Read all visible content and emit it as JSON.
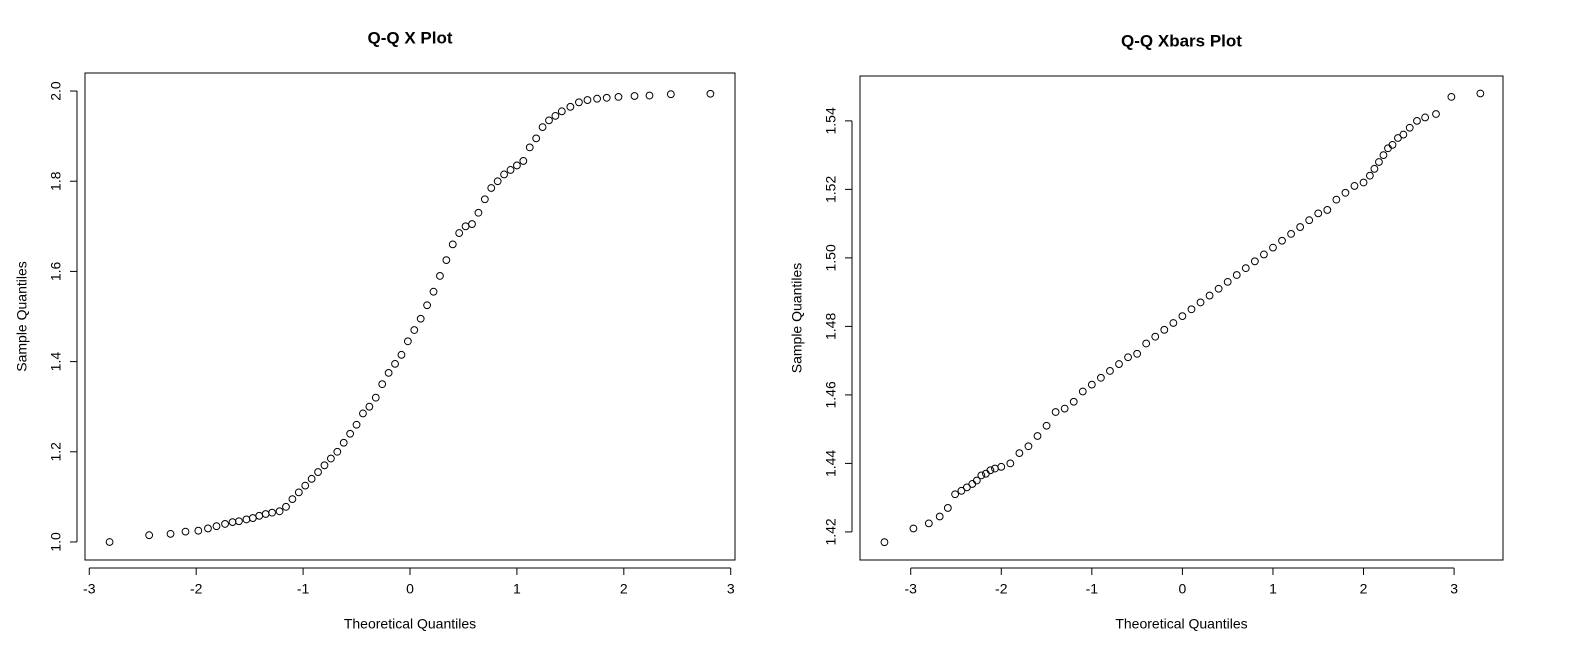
{
  "chart_data": [
    {
      "type": "scatter",
      "title": "Q-Q X Plot",
      "x_label": "Theoretical Quantiles",
      "y_label": "Sample Quantiles",
      "xlim": [
        -3.04,
        3.04
      ],
      "ylim": [
        0.96,
        2.04
      ],
      "xticks": [
        -3,
        -2,
        -1,
        0,
        1,
        2,
        3
      ],
      "yticks": [
        {
          "value": 1,
          "label": "1.0"
        },
        1.2,
        1.4,
        1.6,
        1.8,
        {
          "value": 2,
          "label": "2.0"
        }
      ],
      "color": "#000000",
      "x": [
        -2.81,
        -2.44,
        -2.24,
        -2.1,
        -1.98,
        -1.89,
        -1.81,
        -1.73,
        -1.66,
        -1.6,
        -1.53,
        -1.47,
        -1.41,
        -1.35,
        -1.29,
        -1.22,
        -1.16,
        -1.1,
        -1.04,
        -0.98,
        -0.92,
        -0.86,
        -0.8,
        -0.74,
        -0.68,
        -0.62,
        -0.56,
        -0.5,
        -0.44,
        -0.38,
        -0.32,
        -0.26,
        -0.2,
        -0.14,
        -0.08,
        -0.02,
        0.04,
        0.1,
        0.16,
        0.22,
        0.28,
        0.34,
        0.4,
        0.46,
        0.52,
        0.58,
        0.64,
        0.7,
        0.76,
        0.82,
        0.88,
        0.94,
        1.0,
        1.06,
        1.12,
        1.18,
        1.24,
        1.3,
        1.36,
        1.42,
        1.5,
        1.58,
        1.66,
        1.75,
        1.84,
        1.95,
        2.1,
        2.24,
        2.44,
        2.81
      ],
      "y": [
        1.0,
        1.015,
        1.018,
        1.023,
        1.025,
        1.03,
        1.035,
        1.04,
        1.044,
        1.046,
        1.05,
        1.053,
        1.058,
        1.062,
        1.065,
        1.068,
        1.078,
        1.095,
        1.11,
        1.125,
        1.14,
        1.155,
        1.17,
        1.185,
        1.2,
        1.22,
        1.24,
        1.26,
        1.285,
        1.3,
        1.32,
        1.35,
        1.375,
        1.395,
        1.415,
        1.445,
        1.47,
        1.495,
        1.525,
        1.555,
        1.59,
        1.625,
        1.66,
        1.685,
        1.7,
        1.705,
        1.73,
        1.76,
        1.785,
        1.8,
        1.815,
        1.825,
        1.835,
        1.845,
        1.875,
        1.895,
        1.92,
        1.935,
        1.945,
        1.955,
        1.965,
        1.975,
        1.98,
        1.983,
        1.985,
        1.987,
        1.989,
        1.99,
        1.993,
        1.994
      ]
    },
    {
      "type": "scatter",
      "title": "Q-Q Xbars Plot",
      "x_label": "Theoretical Quantiles",
      "y_label": "Sample Quantiles",
      "xlim": [
        -3.56,
        3.54
      ],
      "ylim": [
        1.4118,
        1.5531
      ],
      "xticks": [
        -3,
        -2,
        -1,
        0,
        1,
        2,
        3
      ],
      "yticks": [
        1.42,
        1.44,
        1.46,
        1.48,
        {
          "value": 1.5,
          "label": "1.50"
        },
        1.52,
        1.54
      ],
      "color": "#000000",
      "x": [
        -3.29,
        -2.97,
        -2.8,
        -2.68,
        -2.59,
        -2.51,
        -2.44,
        -2.38,
        -2.32,
        -2.27,
        -2.22,
        -2.17,
        -2.12,
        -2.07,
        -2.0,
        -1.9,
        -1.8,
        -1.7,
        -1.6,
        -1.5,
        -1.4,
        -1.3,
        -1.2,
        -1.1,
        -1.0,
        -0.9,
        -0.8,
        -0.7,
        -0.6,
        -0.5,
        -0.4,
        -0.3,
        -0.2,
        -0.1,
        0.0,
        0.1,
        0.2,
        0.3,
        0.4,
        0.5,
        0.6,
        0.7,
        0.8,
        0.9,
        1.0,
        1.1,
        1.2,
        1.3,
        1.4,
        1.5,
        1.6,
        1.7,
        1.8,
        1.9,
        2.0,
        2.07,
        2.12,
        2.17,
        2.22,
        2.27,
        2.32,
        2.38,
        2.44,
        2.51,
        2.59,
        2.68,
        2.8,
        2.97,
        3.29
      ],
      "y": [
        1.417,
        1.421,
        1.4225,
        1.4245,
        1.427,
        1.431,
        1.432,
        1.433,
        1.434,
        1.435,
        1.4365,
        1.437,
        1.438,
        1.4385,
        1.439,
        1.44,
        1.443,
        1.445,
        1.448,
        1.451,
        1.455,
        1.456,
        1.458,
        1.461,
        1.463,
        1.465,
        1.467,
        1.469,
        1.471,
        1.472,
        1.475,
        1.477,
        1.479,
        1.481,
        1.483,
        1.485,
        1.487,
        1.489,
        1.491,
        1.493,
        1.495,
        1.497,
        1.499,
        1.501,
        1.503,
        1.505,
        1.507,
        1.509,
        1.511,
        1.513,
        1.514,
        1.517,
        1.519,
        1.521,
        1.522,
        1.524,
        1.526,
        1.528,
        1.53,
        1.532,
        1.533,
        1.535,
        1.536,
        1.538,
        1.54,
        1.541,
        1.542,
        1.547,
        1.548
      ]
    }
  ]
}
